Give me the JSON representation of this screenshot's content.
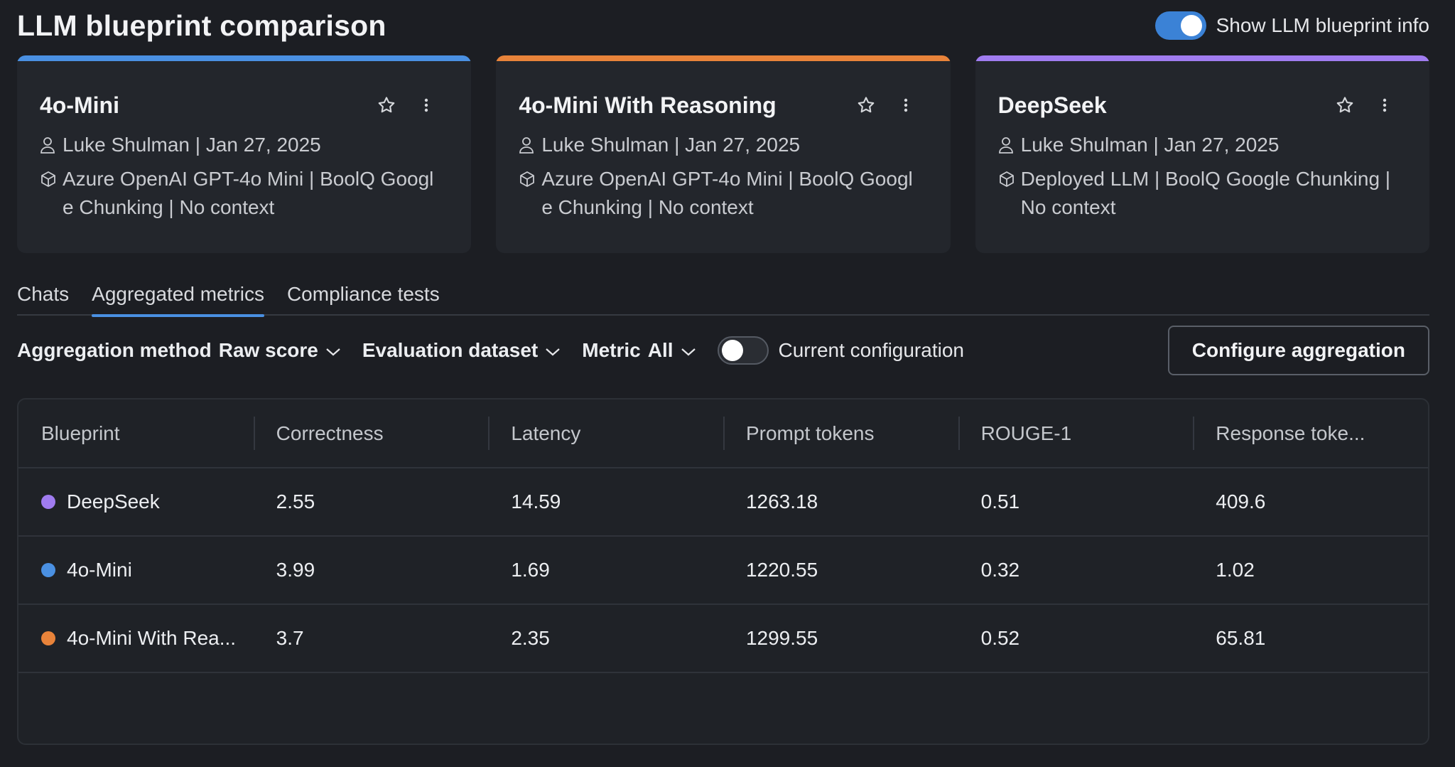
{
  "header": {
    "title": "LLM blueprint comparison",
    "toggle_label": "Show LLM blueprint info",
    "toggle_on": true
  },
  "cards": [
    {
      "name": "4o-Mini",
      "accent_color": "#4a90e2",
      "author": "Luke Shulman | Jan 27, 2025",
      "config_line1": "Azure OpenAI GPT-4o Mini | BoolQ Googl",
      "config_line2": "e Chunking | No context"
    },
    {
      "name": "4o-Mini With Reasoning",
      "accent_color": "#e8833a",
      "author": "Luke Shulman | Jan 27, 2025",
      "config_line1": "Azure OpenAI GPT-4o Mini | BoolQ Googl",
      "config_line2": "e Chunking | No context"
    },
    {
      "name": "DeepSeek",
      "accent_color": "#a07cf0",
      "author": "Luke Shulman | Jan 27, 2025",
      "config_line1": "Deployed LLM | BoolQ Google Chunking |",
      "config_line2": "No context"
    }
  ],
  "tabs": [
    {
      "label": "Chats"
    },
    {
      "label": "Aggregated metrics"
    },
    {
      "label": "Compliance tests"
    }
  ],
  "toolbar": {
    "aggregation_label": "Aggregation method",
    "aggregation_value": "Raw score",
    "dataset_label": "Evaluation dataset",
    "metric_label": "Metric",
    "metric_value": "All",
    "current_config_label": "Current configuration",
    "current_config_on": false,
    "configure_button": "Configure aggregation"
  },
  "table": {
    "columns": [
      "Blueprint",
      "Correctness",
      "Latency",
      "Prompt tokens",
      "ROUGE-1",
      "Response toke..."
    ],
    "rows": [
      {
        "dot_color": "#a07cf0",
        "cells": [
          "DeepSeek",
          "2.55",
          "14.59",
          "1263.18",
          "0.51",
          "409.6"
        ]
      },
      {
        "dot_color": "#4a90e2",
        "cells": [
          "4o-Mini",
          "3.99",
          "1.69",
          "1220.55",
          "0.32",
          "1.02"
        ]
      },
      {
        "dot_color": "#e8833a",
        "cells": [
          "4o-Mini With Rea...",
          "3.7",
          "2.35",
          "1299.55",
          "0.52",
          "65.81"
        ]
      }
    ]
  }
}
